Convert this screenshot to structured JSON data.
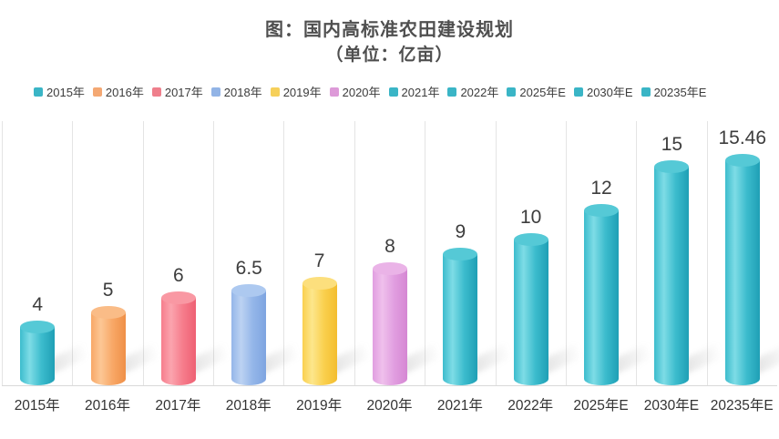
{
  "header": {
    "title": "图：国内高标准农田建设规划",
    "subtitle": "（单位：亿亩）"
  },
  "legend": {
    "items": [
      {
        "label": "2015年",
        "color": "#3ab5c6"
      },
      {
        "label": "2016年",
        "color": "#f4a873"
      },
      {
        "label": "2017年",
        "color": "#ef7f8c"
      },
      {
        "label": "2018年",
        "color": "#92b4e6"
      },
      {
        "label": "2019年",
        "color": "#f6d05a"
      },
      {
        "label": "2020年",
        "color": "#dd9ad8"
      },
      {
        "label": "2021年",
        "color": "#3ab5c6"
      },
      {
        "label": "2022年",
        "color": "#3ab5c6"
      },
      {
        "label": "2025年E",
        "color": "#3ab5c6"
      },
      {
        "label": "2030年E",
        "color": "#3ab5c6"
      },
      {
        "label": "20235年E",
        "color": "#3ab5c6"
      }
    ]
  },
  "chart_data": {
    "type": "bar",
    "bar_style": "3d-cylinder",
    "title": "图：国内高标准农田建设规划",
    "subtitle": "（单位：亿亩）",
    "unit": "亿亩",
    "categories": [
      "2015年",
      "2016年",
      "2017年",
      "2018年",
      "2019年",
      "2020年",
      "2021年",
      "2022年",
      "2025年E",
      "2030年E",
      "20235年E"
    ],
    "values": [
      4,
      5,
      6,
      6.5,
      7,
      8,
      9,
      10,
      12,
      15,
      15.46
    ],
    "value_labels": [
      "4",
      "5",
      "6",
      "6.5",
      "7",
      "8",
      "9",
      "10",
      "12",
      "15",
      "15.46"
    ],
    "ylim": [
      0,
      16.5
    ],
    "grid": "vertical-category-separators",
    "legend_position": "top",
    "baseline_color": "#d9d9d9",
    "separator_color": "#e4e4e4",
    "bar_colors": [
      {
        "light": "#7edce6",
        "base": "#3cbccd",
        "dark": "#1f9fb5",
        "top": "#55c9d6"
      },
      {
        "light": "#fcc795",
        "base": "#f8a867",
        "dark": "#ef8f47",
        "top": "#fabc87"
      },
      {
        "light": "#fba4ae",
        "base": "#f67d8c",
        "dark": "#ee6073",
        "top": "#f998a3"
      },
      {
        "light": "#bcd2f2",
        "base": "#94b6e9",
        "dark": "#7ea4e0",
        "top": "#adc9f0"
      },
      {
        "light": "#fde68c",
        "base": "#fad04e",
        "dark": "#f3bd2e",
        "top": "#fcdf7d"
      },
      {
        "light": "#efc0ec",
        "base": "#e19ee0",
        "dark": "#d587d3",
        "top": "#eab3e7"
      },
      {
        "light": "#7edce6",
        "base": "#3cbccd",
        "dark": "#1f9fb5",
        "top": "#55c9d6"
      },
      {
        "light": "#7edce6",
        "base": "#3cbccd",
        "dark": "#1f9fb5",
        "top": "#55c9d6"
      },
      {
        "light": "#7edce6",
        "base": "#3cbccd",
        "dark": "#1f9fb5",
        "top": "#55c9d6"
      },
      {
        "light": "#7edce6",
        "base": "#3cbccd",
        "dark": "#1f9fb5",
        "top": "#55c9d6"
      },
      {
        "light": "#7edce6",
        "base": "#3cbccd",
        "dark": "#1f9fb5",
        "top": "#55c9d6"
      }
    ]
  }
}
